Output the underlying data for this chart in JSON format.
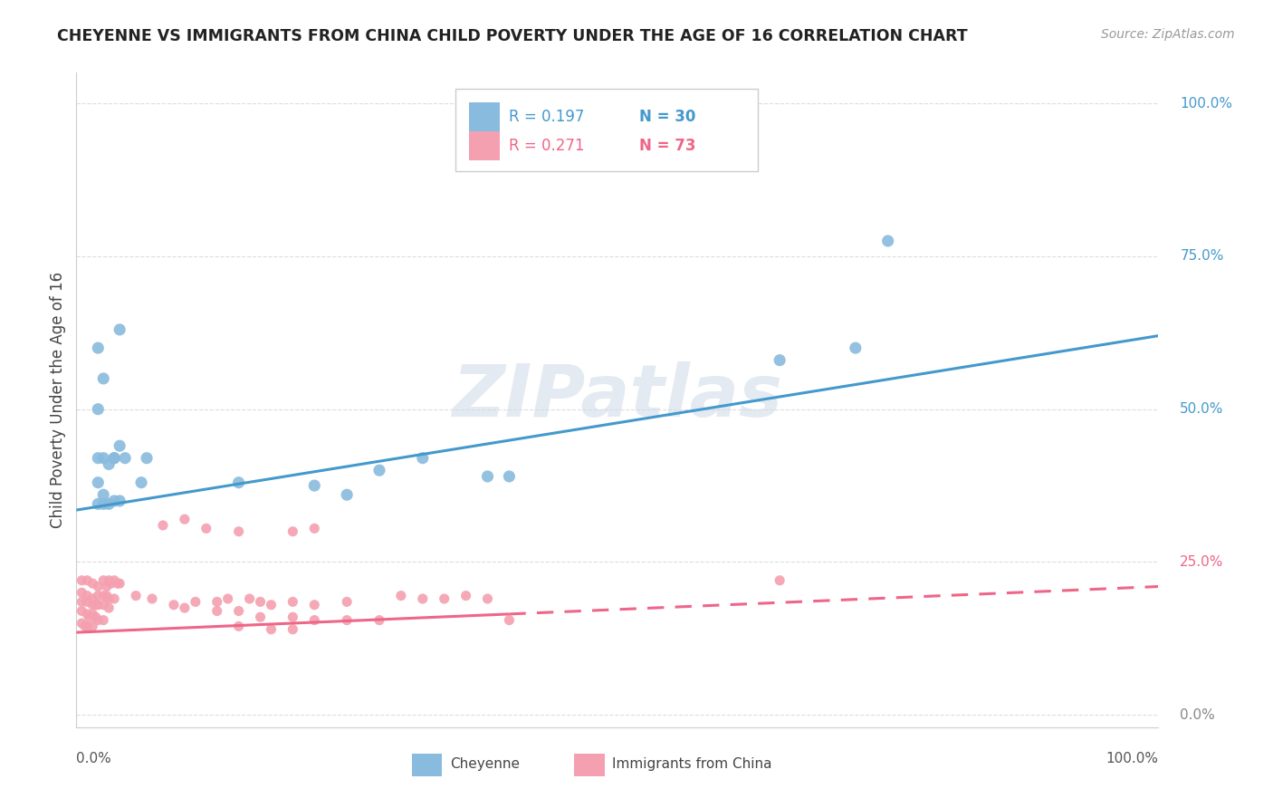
{
  "title": "CHEYENNE VS IMMIGRANTS FROM CHINA CHILD POVERTY UNDER THE AGE OF 16 CORRELATION CHART",
  "source": "Source: ZipAtlas.com",
  "ylabel": "Child Poverty Under the Age of 16",
  "background_color": "#ffffff",
  "watermark": "ZIPatlas",
  "legend_r1": "R = 0.197",
  "legend_n1": "N = 30",
  "legend_r2": "R = 0.271",
  "legend_n2": "N = 73",
  "cheyenne_color": "#88bbdd",
  "china_color": "#f4a0b0",
  "cheyenne_line_color": "#4499cc",
  "china_line_color": "#ee6688",
  "gridline_color": "#dddddd",
  "ytick_labels": [
    "100.0%",
    "75.0%",
    "50.0%",
    "25.0%",
    "0.0%"
  ],
  "ytick_values": [
    100,
    75,
    50,
    25,
    0
  ],
  "ytick_colors": [
    "#4499cc",
    "#4499cc",
    "#4499cc",
    "#ee6688",
    "#888888"
  ],
  "cheyenne_points_x": [
    2,
    3.5,
    6.5,
    2,
    4,
    2.5,
    2,
    2.5,
    4.5,
    2,
    3,
    4,
    6,
    2.5,
    3.5,
    4,
    2,
    2.5,
    3,
    3.5,
    28,
    32,
    65,
    72,
    75,
    15,
    22,
    25,
    38,
    40
  ],
  "cheyenne_points_y": [
    42,
    42,
    42,
    60,
    63,
    55,
    50,
    42,
    42,
    38,
    41,
    44,
    38,
    36,
    35,
    35,
    34.5,
    34.5,
    34.5,
    42,
    40,
    42,
    58,
    60,
    77.5,
    38,
    37.5,
    36,
    39,
    39
  ],
  "china_points_x": [
    0.5,
    1,
    1.5,
    2,
    2.5,
    2.8,
    3,
    3.2,
    3.5,
    3.8,
    4,
    0.5,
    1,
    1.5,
    2,
    2.5,
    2.8,
    3,
    3.5,
    0.5,
    1,
    1.5,
    1.8,
    2,
    2.5,
    3,
    0.5,
    1,
    1.2,
    1.5,
    1.8,
    2,
    2.5,
    0.5,
    0.8,
    1,
    1.5,
    5.5,
    7,
    9,
    11,
    13,
    14,
    16,
    17,
    18,
    20,
    22,
    25,
    8,
    10,
    12,
    15,
    20,
    22,
    30,
    32,
    34,
    36,
    38,
    10,
    13,
    15,
    17,
    20,
    22,
    25,
    28,
    40,
    65,
    15,
    18,
    20
  ],
  "china_points_y": [
    22,
    22,
    21.5,
    21,
    22,
    21,
    22,
    21.5,
    22,
    21.5,
    21.5,
    20,
    19.5,
    19,
    19.5,
    19.5,
    19.5,
    19,
    19,
    18.5,
    18.5,
    18,
    18,
    18,
    18,
    17.5,
    17,
    16.5,
    16,
    16.5,
    16,
    15.5,
    15.5,
    15,
    14.5,
    14.5,
    14.5,
    19.5,
    19,
    18,
    18.5,
    18.5,
    19,
    19,
    18.5,
    18,
    18.5,
    18,
    18.5,
    31,
    32,
    30.5,
    30,
    30,
    30.5,
    19.5,
    19,
    19,
    19.5,
    19,
    17.5,
    17,
    17,
    16,
    16,
    15.5,
    15.5,
    15.5,
    15.5,
    22,
    14.5,
    14,
    14
  ],
  "cheyenne_line_x0": 0,
  "cheyenne_line_x1": 100,
  "cheyenne_line_y0": 33.5,
  "cheyenne_line_y1": 62,
  "china_line_x0": 0,
  "china_line_x1": 100,
  "china_line_y0": 13.5,
  "china_line_y1": 21,
  "china_dash_x0": 40,
  "china_dash_x1": 100,
  "china_dash_y0": 17.5,
  "china_dash_y1": 22,
  "xlim": [
    0,
    100
  ],
  "ylim": [
    -2,
    105
  ]
}
